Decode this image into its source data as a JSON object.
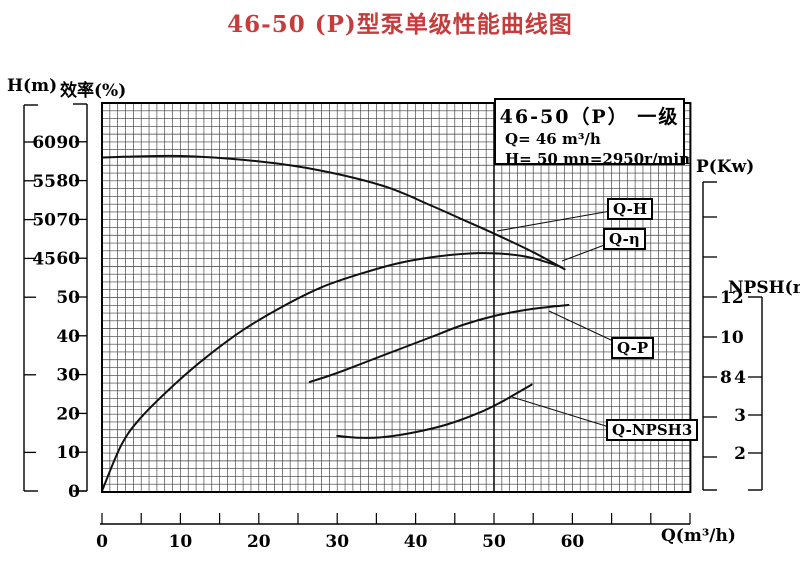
{
  "title": "46-50 (P)型泵单级性能曲线图",
  "colors": {
    "title_red": "#c43c3c",
    "ink": "#111111",
    "grid": "#3c3c3c"
  },
  "info_box": {
    "title": "46-50（P） 一级",
    "line_q": "Q= 46 m³/h",
    "line_h": "H= 50 m",
    "line_n": "n=2950r/min"
  },
  "chart_data": {
    "type": "line",
    "title": "46-50 (P)型泵单级性能曲线图",
    "grid": true,
    "reference_line_q": 50,
    "x_axis": {
      "label": "Q(m³/h)",
      "range": [
        0,
        75
      ],
      "minor_tick_step": 5,
      "labeled_ticks": [
        0,
        10,
        20,
        30,
        40,
        50,
        60
      ]
    },
    "y_axes": [
      {
        "id": "H",
        "label": "H(m)",
        "side": "left",
        "labeled_ticks": [
          60,
          55,
          50,
          45
        ],
        "unlabeled_ticks": [
          40,
          30,
          20
        ]
      },
      {
        "id": "eff",
        "label": "效率(%)",
        "side": "left",
        "labeled_ticks": [
          90,
          80,
          70,
          60,
          50,
          40,
          30,
          20,
          10,
          0
        ],
        "unlabeled_ticks": [],
        "range": [
          0,
          100
        ]
      },
      {
        "id": "P",
        "label": "P(Kw)",
        "side": "right",
        "labeled_ticks": [
          12,
          10,
          8
        ],
        "unlabeled_ticks": [
          16,
          14,
          6,
          4
        ]
      },
      {
        "id": "NPSH",
        "label": "NPSH(m)",
        "side": "right",
        "labeled_ticks": [
          4,
          3,
          2
        ],
        "unlabeled_ticks": []
      }
    ],
    "series": [
      {
        "name": "Q-H",
        "axis": "H",
        "units": "m",
        "points": [
          [
            0,
            58
          ],
          [
            10,
            58.2
          ],
          [
            20,
            57.5
          ],
          [
            28,
            56.3
          ],
          [
            36,
            54.3
          ],
          [
            42,
            51.8
          ],
          [
            46,
            50
          ],
          [
            50,
            48.2
          ],
          [
            55,
            45.8
          ],
          [
            59,
            43.6
          ]
        ]
      },
      {
        "name": "Q-η",
        "axis": "eff",
        "units": "%",
        "points": [
          [
            0,
            0
          ],
          [
            2.5,
            12
          ],
          [
            5,
            19
          ],
          [
            9,
            27
          ],
          [
            13,
            34
          ],
          [
            18,
            41.5
          ],
          [
            23,
            47.5
          ],
          [
            28,
            52.5
          ],
          [
            33,
            56
          ],
          [
            38,
            58.8
          ],
          [
            43,
            60.5
          ],
          [
            48,
            61.3
          ],
          [
            52,
            61
          ],
          [
            55,
            60
          ],
          [
            58.5,
            57.8
          ]
        ]
      },
      {
        "name": "Q-P",
        "axis": "P",
        "units": "Kw",
        "points": [
          [
            26.5,
            7.75
          ],
          [
            30,
            8.2
          ],
          [
            34,
            8.8
          ],
          [
            38,
            9.4
          ],
          [
            42,
            10
          ],
          [
            46,
            10.6
          ],
          [
            50,
            11.05
          ],
          [
            54,
            11.35
          ],
          [
            57,
            11.5
          ],
          [
            59.5,
            11.6
          ]
        ]
      },
      {
        "name": "Q-NPSH3",
        "axis": "NPSH",
        "units": "m",
        "points": [
          [
            30,
            2.45
          ],
          [
            33,
            2.4
          ],
          [
            36,
            2.42
          ],
          [
            40,
            2.55
          ],
          [
            44,
            2.75
          ],
          [
            48,
            3.05
          ],
          [
            51,
            3.35
          ],
          [
            54.8,
            3.8
          ]
        ]
      }
    ],
    "rated_point": {
      "Q": 46,
      "H": 50,
      "n": "2950r/min"
    }
  }
}
